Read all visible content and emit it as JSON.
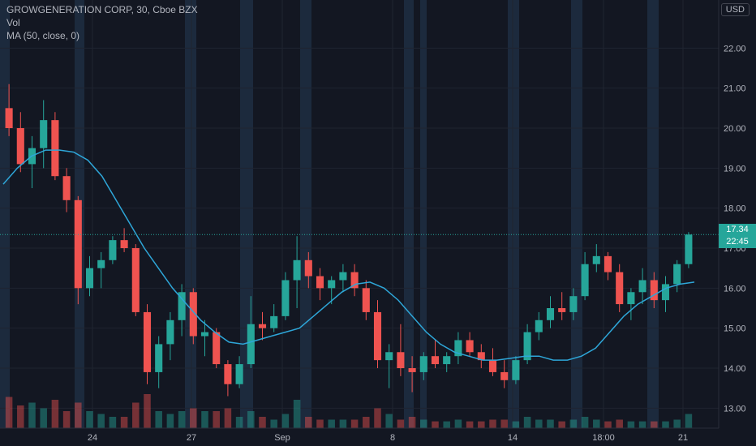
{
  "legend": {
    "symbol": "GROWGENERATION CORP, 30, Cboe BZX",
    "vol": "Vol",
    "ma": "MA (50, close, 0)"
  },
  "currency": "USD",
  "last_price": "17.34",
  "countdown": "22:45",
  "colors": {
    "up": "#26a69a",
    "down": "#ef5350",
    "ma": "#2ea6d8",
    "bg": "#131722",
    "session": "#1c2a3d",
    "grid": "#1f2430",
    "axis_text": "#b2b5be"
  },
  "chart_data": {
    "type": "candlestick",
    "title": "GROWGENERATION CORP, 30, Cboe BZX",
    "ylim": [
      12.5,
      23.0
    ],
    "yticks": [
      "13.00",
      "14.00",
      "15.00",
      "16.00",
      "17.00",
      "18.00",
      "19.00",
      "20.00",
      "21.00",
      "22.00"
    ],
    "xticks": [
      "24",
      "27",
      "Sep",
      "8",
      "14",
      "18:00",
      "21"
    ],
    "last_price": 17.34,
    "ma_label": "MA (50, close, 0)",
    "series": [
      {
        "name": "MA (50, close, 0)",
        "values": [
          18.6,
          19.0,
          19.3,
          19.45,
          19.45,
          19.4,
          19.2,
          18.8,
          18.2,
          17.6,
          17.0,
          16.5,
          16.0,
          15.6,
          15.2,
          14.9,
          14.65,
          14.6,
          14.7,
          14.8,
          14.9,
          15.0,
          15.3,
          15.6,
          15.9,
          16.1,
          16.15,
          16.0,
          15.7,
          15.3,
          14.9,
          14.6,
          14.4,
          14.3,
          14.2,
          14.2,
          14.25,
          14.3,
          14.3,
          14.2,
          14.2,
          14.3,
          14.5,
          14.9,
          15.3,
          15.6,
          15.8,
          16.0,
          16.1,
          16.15
        ]
      }
    ],
    "candles": [
      [
        20.5,
        21.1,
        19.8,
        20.0
      ],
      [
        20.0,
        20.4,
        18.9,
        19.1
      ],
      [
        19.1,
        19.8,
        18.5,
        19.5
      ],
      [
        19.5,
        20.7,
        19.0,
        20.2
      ],
      [
        20.2,
        20.4,
        18.7,
        18.8
      ],
      [
        18.8,
        19.0,
        17.9,
        18.2
      ],
      [
        18.2,
        18.3,
        15.6,
        16.0
      ],
      [
        16.0,
        16.8,
        15.8,
        16.5
      ],
      [
        16.5,
        16.9,
        16.0,
        16.7
      ],
      [
        16.7,
        17.3,
        16.6,
        17.2
      ],
      [
        17.2,
        17.5,
        16.9,
        17.0
      ],
      [
        17.0,
        17.1,
        15.3,
        15.4
      ],
      [
        15.4,
        15.6,
        13.6,
        13.9
      ],
      [
        13.9,
        14.8,
        13.5,
        14.6
      ],
      [
        14.6,
        15.4,
        14.2,
        15.2
      ],
      [
        15.2,
        16.1,
        14.8,
        15.9
      ],
      [
        15.9,
        16.0,
        14.6,
        14.8
      ],
      [
        14.8,
        15.2,
        14.3,
        14.9
      ],
      [
        14.9,
        15.0,
        14.0,
        14.1
      ],
      [
        14.1,
        14.2,
        13.3,
        13.6
      ],
      [
        13.6,
        14.3,
        13.5,
        14.1
      ],
      [
        14.1,
        15.8,
        14.0,
        15.1
      ],
      [
        15.1,
        15.4,
        14.7,
        15.0
      ],
      [
        15.0,
        15.6,
        14.9,
        15.3
      ],
      [
        15.3,
        16.4,
        15.2,
        16.2
      ],
      [
        16.2,
        17.3,
        15.5,
        16.7
      ],
      [
        16.7,
        16.9,
        16.0,
        16.3
      ],
      [
        16.3,
        16.5,
        15.7,
        16.0
      ],
      [
        16.0,
        16.3,
        15.6,
        16.2
      ],
      [
        16.2,
        16.6,
        15.9,
        16.4
      ],
      [
        16.4,
        16.6,
        15.8,
        16.0
      ],
      [
        16.0,
        16.2,
        15.2,
        15.4
      ],
      [
        15.4,
        15.7,
        14.0,
        14.2
      ],
      [
        14.2,
        14.6,
        13.5,
        14.4
      ],
      [
        14.4,
        15.1,
        13.8,
        14.0
      ],
      [
        14.0,
        14.3,
        13.4,
        13.9
      ],
      [
        13.9,
        14.4,
        13.7,
        14.3
      ],
      [
        14.3,
        14.7,
        14.0,
        14.1
      ],
      [
        14.1,
        14.4,
        13.9,
        14.3
      ],
      [
        14.3,
        14.9,
        14.1,
        14.7
      ],
      [
        14.7,
        14.9,
        14.3,
        14.4
      ],
      [
        14.4,
        14.6,
        14.0,
        14.2
      ],
      [
        14.2,
        14.5,
        13.8,
        13.9
      ],
      [
        13.9,
        14.2,
        13.5,
        13.7
      ],
      [
        13.7,
        14.3,
        13.6,
        14.2
      ],
      [
        14.2,
        15.1,
        14.1,
        14.9
      ],
      [
        14.9,
        15.4,
        14.7,
        15.2
      ],
      [
        15.2,
        15.8,
        15.0,
        15.5
      ],
      [
        15.5,
        15.9,
        15.2,
        15.4
      ],
      [
        15.4,
        16.0,
        15.2,
        15.8
      ],
      [
        15.8,
        16.9,
        15.7,
        16.6
      ],
      [
        16.6,
        17.1,
        16.4,
        16.8
      ],
      [
        16.8,
        16.9,
        16.2,
        16.4
      ],
      [
        16.4,
        16.6,
        15.4,
        15.6
      ],
      [
        15.6,
        16.0,
        15.2,
        15.9
      ],
      [
        15.9,
        16.5,
        15.6,
        16.2
      ],
      [
        16.2,
        16.4,
        15.5,
        15.7
      ],
      [
        15.7,
        16.3,
        15.4,
        16.1
      ],
      [
        16.1,
        16.7,
        15.9,
        16.6
      ],
      [
        16.6,
        17.4,
        16.5,
        17.34
      ]
    ],
    "volume": [
      0.55,
      0.4,
      0.45,
      0.35,
      0.5,
      0.3,
      0.45,
      0.3,
      0.25,
      0.2,
      0.2,
      0.45,
      0.6,
      0.3,
      0.25,
      0.3,
      0.35,
      0.3,
      0.3,
      0.35,
      0.2,
      0.3,
      0.2,
      0.15,
      0.25,
      0.5,
      0.2,
      0.15,
      0.15,
      0.15,
      0.15,
      0.2,
      0.35,
      0.25,
      0.15,
      0.2,
      0.15,
      0.12,
      0.12,
      0.15,
      0.12,
      0.12,
      0.15,
      0.15,
      0.12,
      0.2,
      0.15,
      0.15,
      0.12,
      0.15,
      0.2,
      0.15,
      0.12,
      0.15,
      0.12,
      0.12,
      0.12,
      0.12,
      0.15,
      0.25
    ]
  }
}
